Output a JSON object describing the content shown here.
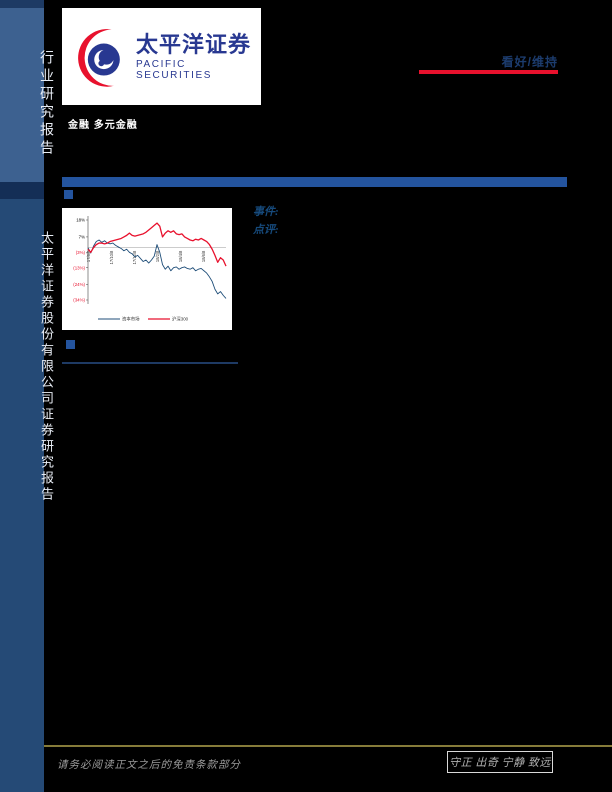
{
  "sidebar": {
    "top_text": "行业研究报告",
    "bottom_text": "太平洋证券股份有限公司证券研究报告"
  },
  "header": {
    "logo_cn": "太平洋证券",
    "logo_en": "PACIFIC SECURITIES",
    "category": "金融  多元金融",
    "rating": "看好/维持",
    "rating_underline_color": "#e8112d"
  },
  "body_labels": {
    "event": "事件:",
    "comment": "点评:"
  },
  "chart_data": {
    "type": "line",
    "title": "",
    "xlabel": "",
    "ylabel": "",
    "x_labels": [
      "17/8/8",
      "17/10/8",
      "17/12/8",
      "18/2/8",
      "18/4/8",
      "18/6/8"
    ],
    "yticks": [
      18,
      7,
      -3,
      -13,
      -24,
      -34
    ],
    "ytick_labels": [
      "18%",
      "7%",
      "(3%)",
      "(13%)",
      "(24%)",
      "(34%)"
    ],
    "ylim": [
      -34,
      18
    ],
    "zero_line": true,
    "legend_position": "bottom",
    "series": [
      {
        "name": "资本市场",
        "color": "#1F4E79",
        "values": [
          0,
          -3.5,
          1,
          4,
          5,
          3.5,
          4.5,
          3,
          2.5,
          3,
          1.5,
          0.5,
          -0.5,
          -2,
          -1,
          -3,
          -4,
          -6,
          -5,
          -7,
          -9,
          -8,
          -10,
          -8,
          -5.5,
          2,
          -3,
          -11,
          -14,
          -12,
          -15,
          -13,
          -12.5,
          -14,
          -13,
          -12.5,
          -13.5,
          -14,
          -13,
          -15,
          -14,
          -13.5,
          -15,
          -16.5,
          -19,
          -22,
          -27,
          -30,
          -28.5,
          -31,
          -33
        ]
      },
      {
        "name": "沪深300",
        "color": "#E8112D",
        "values": [
          -1,
          -3,
          0,
          2,
          3,
          3,
          2.5,
          3,
          4,
          4.5,
          5,
          5.5,
          6,
          7,
          8,
          9.5,
          8,
          7.5,
          8,
          8.5,
          9,
          10,
          11.5,
          13,
          14.5,
          16,
          14,
          7,
          9.5,
          11,
          10,
          11,
          9,
          8.5,
          9,
          7,
          6,
          5,
          4.5,
          5.5,
          5,
          6,
          5,
          4,
          2,
          -1,
          -5,
          -9.5,
          -6.5,
          -8,
          -12
        ]
      }
    ]
  },
  "footer": {
    "disclaimer": "请务必阅读正文之后的免责条款部分",
    "motto": "守正 出奇 宁静 致远"
  }
}
